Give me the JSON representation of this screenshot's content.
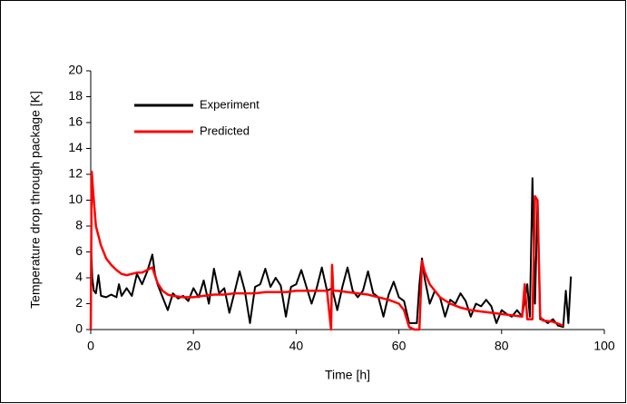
{
  "chart_data": {
    "type": "line",
    "x_label": "Time [h]",
    "y_label": "Temperature drop through package [K]",
    "xlim": [
      0,
      100
    ],
    "xticks": [
      0,
      20,
      40,
      60,
      80,
      100
    ],
    "ylim": [
      0,
      20
    ],
    "yticks": [
      0,
      2,
      4,
      6,
      8,
      10,
      12,
      14,
      16,
      18,
      20
    ],
    "grid": false,
    "legend": "top-left",
    "series": [
      {
        "name": "Experiment",
        "color": "#000000",
        "x": [
          0,
          0.1,
          0.3,
          0.6,
          1,
          1.5,
          2,
          3,
          4,
          5,
          5.5,
          6,
          7,
          8,
          9,
          10,
          11,
          12,
          12.5,
          13,
          14,
          15,
          16,
          17,
          18,
          19,
          20,
          21,
          22,
          23,
          24,
          25,
          26,
          27,
          28,
          29,
          30,
          31,
          32,
          33,
          34,
          35,
          36,
          37,
          38,
          39,
          40,
          41,
          42,
          43,
          44,
          45,
          46,
          47,
          48,
          49,
          50,
          51,
          52,
          53,
          54,
          55,
          56,
          57,
          58,
          59,
          60,
          61,
          62,
          63,
          63.5,
          64,
          64.5,
          65,
          66,
          67,
          68,
          69,
          70,
          71,
          72,
          73,
          74,
          75,
          76,
          77,
          78,
          79,
          80,
          81,
          82,
          83,
          84,
          85,
          85.5,
          86,
          86.5,
          87,
          87.5,
          88,
          89,
          90,
          91,
          92,
          92.5,
          93,
          93.5
        ],
        "values": [
          0,
          6,
          4,
          3,
          2.8,
          4.2,
          2.6,
          2.5,
          2.7,
          2.5,
          3.5,
          2.6,
          3.2,
          2.6,
          4.3,
          3.5,
          4.5,
          5.8,
          4.3,
          3.5,
          2.5,
          1.5,
          2.8,
          2.4,
          2.6,
          2.2,
          3.2,
          2.5,
          3.8,
          2,
          4.7,
          2.8,
          3.2,
          1.3,
          2.9,
          4.5,
          3,
          0.5,
          3.3,
          3.5,
          4.7,
          3.3,
          4,
          3.4,
          1,
          3.3,
          3.5,
          4.6,
          3.3,
          2,
          3.2,
          4.8,
          3,
          3.2,
          1.5,
          3.3,
          4.8,
          3,
          2.5,
          3,
          4.5,
          2.8,
          2.5,
          1,
          2.7,
          3.7,
          2.5,
          2.2,
          0.5,
          0.5,
          0.5,
          3.5,
          5.5,
          4,
          2,
          3,
          2.5,
          1,
          2.3,
          2,
          2.8,
          2.2,
          1,
          2,
          1.8,
          2.3,
          1.8,
          0.5,
          1.5,
          1.2,
          1,
          1.5,
          1,
          3.5,
          1,
          11.7,
          2,
          10,
          0.8,
          0.8,
          0.5,
          0.8,
          0.3,
          0.2,
          3,
          0.5,
          4.1
        ]
      },
      {
        "name": "Predicted",
        "color": "#ff0000",
        "x": [
          0,
          0.2,
          0.5,
          1,
          2,
          3,
          4,
          5,
          6,
          7,
          8,
          9,
          10,
          11,
          12,
          13,
          14,
          15,
          16,
          18,
          20,
          22,
          24,
          26,
          28,
          30,
          32,
          34,
          36,
          38,
          40,
          42,
          44,
          46,
          46.8,
          47,
          47.2,
          48,
          50,
          52,
          54,
          56,
          58,
          60,
          61,
          62,
          63,
          64,
          64.5,
          65,
          66,
          68,
          70,
          72,
          74,
          76,
          78,
          80,
          82,
          84,
          84.5,
          85,
          86,
          86.5,
          87,
          87.5,
          88,
          90,
          92
        ],
        "values": [
          0,
          12.2,
          10.5,
          8,
          6.5,
          5.5,
          5,
          4.6,
          4.3,
          4.2,
          4.3,
          4.4,
          4.4,
          4.6,
          4.8,
          3.6,
          3,
          2.7,
          2.6,
          2.5,
          2.5,
          2.6,
          2.7,
          2.7,
          2.8,
          2.8,
          2.8,
          2.9,
          2.9,
          2.9,
          3,
          3,
          3,
          3,
          0,
          5,
          3,
          3,
          2.9,
          2.8,
          2.7,
          2.5,
          2.3,
          2,
          1.5,
          0.2,
          0,
          0,
          5.3,
          4.5,
          3.5,
          2.5,
          2,
          1.7,
          1.5,
          1.4,
          1.3,
          1.2,
          1.1,
          1,
          3.5,
          0.8,
          0.8,
          10.3,
          10,
          1,
          0.7,
          0.6,
          0.3
        ]
      }
    ]
  }
}
